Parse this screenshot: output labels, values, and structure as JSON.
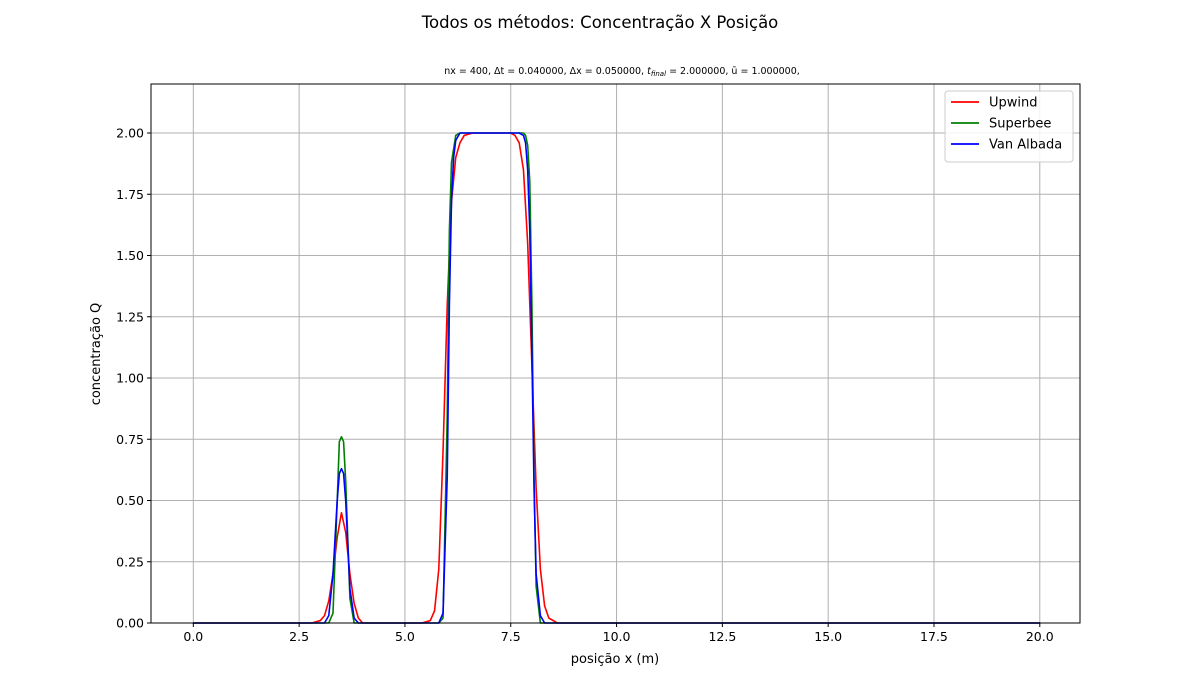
{
  "chart_data": {
    "type": "line",
    "title": "Todos os métodos: Concentração X Posição",
    "subtitle": {
      "nx": "nx = 400, ",
      "dt": "Δt = 0.040000, ",
      "dx": "Δx = 0.050000, ",
      "tfinal_sym": "t",
      "tfinal_sub": "final",
      "tfinal_val": " = 2.000000, ",
      "ubar": "ū = 1.000000,"
    },
    "xlabel": "posição x (m)",
    "ylabel": "concentração Q",
    "xlim": [
      -1.0,
      20.95
    ],
    "ylim": [
      0.0,
      2.2
    ],
    "xticks": [
      0.0,
      2.5,
      5.0,
      7.5,
      10.0,
      12.5,
      15.0,
      17.5,
      20.0
    ],
    "xtick_labels": [
      "0.0",
      "2.5",
      "5.0",
      "7.5",
      "10.0",
      "12.5",
      "15.0",
      "17.5",
      "20.0"
    ],
    "yticks": [
      0.0,
      0.25,
      0.5,
      0.75,
      1.0,
      1.25,
      1.5,
      1.75,
      2.0
    ],
    "ytick_labels": [
      "0.00",
      "0.25",
      "0.50",
      "0.75",
      "1.00",
      "1.25",
      "1.50",
      "1.75",
      "2.00"
    ],
    "grid": true,
    "legend_position": "top-right",
    "series": [
      {
        "name": "Upwind",
        "color": "#ff0000",
        "x": [
          0.0,
          2.8,
          3.0,
          3.1,
          3.2,
          3.3,
          3.4,
          3.5,
          3.6,
          3.7,
          3.8,
          3.9,
          4.0,
          4.2,
          5.4,
          5.6,
          5.7,
          5.8,
          5.9,
          6.0,
          6.1,
          6.2,
          6.3,
          6.4,
          6.6,
          7.0,
          7.5,
          7.6,
          7.7,
          7.8,
          7.9,
          8.0,
          8.1,
          8.2,
          8.3,
          8.4,
          8.6,
          20.0
        ],
        "y": [
          0.0,
          0.0,
          0.01,
          0.03,
          0.09,
          0.2,
          0.35,
          0.45,
          0.37,
          0.2,
          0.08,
          0.02,
          0.0,
          0.0,
          0.0,
          0.01,
          0.05,
          0.22,
          0.7,
          1.3,
          1.72,
          1.9,
          1.96,
          1.99,
          2.0,
          2.0,
          2.0,
          1.99,
          1.96,
          1.85,
          1.55,
          1.05,
          0.55,
          0.22,
          0.07,
          0.02,
          0.0,
          0.0
        ]
      },
      {
        "name": "Superbee",
        "color": "#008000",
        "x": [
          0.0,
          3.2,
          3.3,
          3.4,
          3.45,
          3.5,
          3.55,
          3.6,
          3.7,
          3.8,
          4.0,
          5.8,
          5.9,
          6.0,
          6.05,
          6.1,
          6.2,
          6.3,
          6.4,
          7.6,
          7.8,
          7.85,
          7.9,
          7.95,
          8.0,
          8.05,
          8.1,
          8.2,
          20.0
        ],
        "y": [
          0.0,
          0.0,
          0.04,
          0.5,
          0.74,
          0.76,
          0.74,
          0.58,
          0.1,
          0.0,
          0.0,
          0.0,
          0.02,
          0.85,
          1.6,
          1.88,
          1.99,
          2.0,
          2.0,
          2.0,
          2.0,
          1.99,
          1.95,
          1.8,
          1.3,
          0.6,
          0.15,
          0.0,
          0.0
        ]
      },
      {
        "name": "Van Albada",
        "color": "#0000ff",
        "x": [
          0.0,
          3.1,
          3.2,
          3.3,
          3.4,
          3.45,
          3.5,
          3.55,
          3.6,
          3.65,
          3.7,
          3.8,
          3.9,
          5.8,
          5.9,
          6.0,
          6.05,
          6.1,
          6.15,
          6.2,
          6.3,
          6.4,
          7.5,
          7.7,
          7.8,
          7.85,
          7.9,
          7.95,
          8.0,
          8.05,
          8.1,
          8.2,
          8.3,
          20.0
        ],
        "y": [
          0.0,
          0.0,
          0.03,
          0.2,
          0.5,
          0.61,
          0.63,
          0.61,
          0.5,
          0.32,
          0.14,
          0.02,
          0.0,
          0.0,
          0.04,
          0.6,
          1.3,
          1.72,
          1.9,
          1.97,
          2.0,
          2.0,
          2.0,
          2.0,
          1.99,
          1.96,
          1.85,
          1.6,
          1.1,
          0.55,
          0.2,
          0.03,
          0.0,
          0.0
        ]
      }
    ]
  }
}
